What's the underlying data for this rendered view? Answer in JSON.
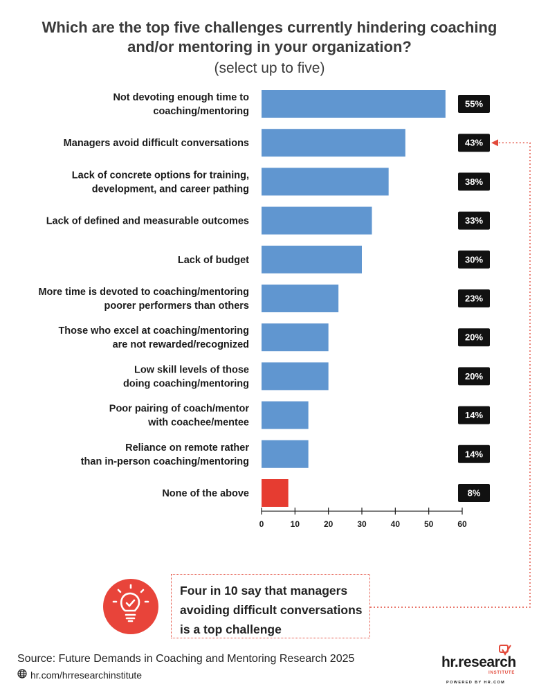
{
  "title": "Which are the top five challenges currently hindering coaching and/or mentoring in your organization?",
  "subtitle": "(select up to five)",
  "chart_data": {
    "type": "bar",
    "orientation": "horizontal",
    "categories": [
      [
        "Not devoting enough time to",
        "coaching/mentoring"
      ],
      [
        "Managers avoid difficult conversations"
      ],
      [
        "Lack of concrete options for training,",
        "development, and career pathing"
      ],
      [
        "Lack of defined and measurable outcomes"
      ],
      [
        "Lack of budget"
      ],
      [
        "More time is devoted to coaching/mentoring",
        "poorer performers than others"
      ],
      [
        "Those who excel at coaching/mentoring",
        "are not rewarded/recognized"
      ],
      [
        "Low skill levels of those",
        "doing coaching/mentoring"
      ],
      [
        "Poor pairing of coach/mentor",
        "with coachee/mentee"
      ],
      [
        "Reliance on remote rather",
        "than in-person coaching/mentoring"
      ],
      [
        "None of the above"
      ]
    ],
    "values": [
      55,
      43,
      38,
      33,
      30,
      23,
      20,
      20,
      14,
      14,
      8
    ],
    "value_labels": [
      "55%",
      "43%",
      "38%",
      "33%",
      "30%",
      "23%",
      "20%",
      "20%",
      "14%",
      "14%",
      "8%"
    ],
    "bar_colors": [
      "#6096d0",
      "#6096d0",
      "#6096d0",
      "#6096d0",
      "#6096d0",
      "#6096d0",
      "#6096d0",
      "#6096d0",
      "#6096d0",
      "#6096d0",
      "#e63c31"
    ],
    "xlim": [
      0,
      60
    ],
    "xticks": [
      "0",
      "10",
      "20",
      "30",
      "40",
      "50",
      "60"
    ],
    "grid": false,
    "highlighted_index": 1
  },
  "callout": {
    "lines": [
      "Four in 10 say that managers",
      "avoiding difficult conversations",
      "is a top challenge"
    ]
  },
  "source": "Source:  Future Demands in Coaching and Mentoring Research 2025",
  "url": "hr.com/hrresearchinstitute",
  "logo": {
    "main": "hr.research",
    "sub": "INSTITUTE",
    "powered": "POWERED BY HR.COM"
  },
  "colors": {
    "bar": "#6096d0",
    "highlight": "#e63c31",
    "label_box": "#111111",
    "accent": "#e24a3b"
  },
  "icons": [
    "lightbulb-icon",
    "globe-icon",
    "arrow-icon"
  ]
}
